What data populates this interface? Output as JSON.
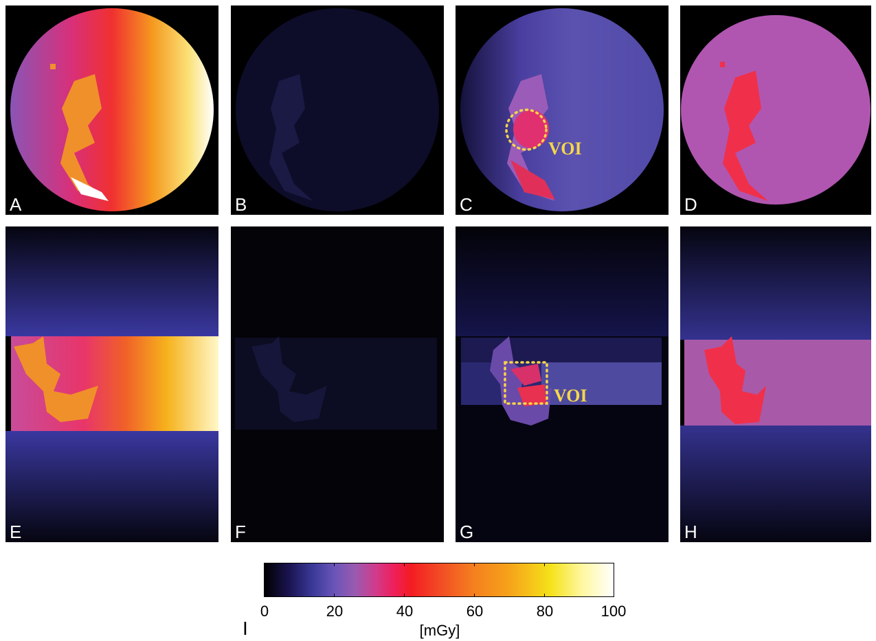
{
  "panels": {
    "a": {
      "label": "A"
    },
    "b": {
      "label": "B"
    },
    "c": {
      "label": "C",
      "annotation": "VOI"
    },
    "d": {
      "label": "D"
    },
    "e": {
      "label": "E"
    },
    "f": {
      "label": "F"
    },
    "g": {
      "label": "G",
      "annotation": "VOI"
    },
    "h": {
      "label": "H"
    }
  },
  "colorbar": {
    "label": "I",
    "ticks": [
      "0",
      "20",
      "40",
      "60",
      "80",
      "100"
    ],
    "unit": "[mGy]",
    "range": [
      0,
      100
    ]
  },
  "colors": {
    "voi_marker": "#f6d64a",
    "background": "#000000"
  }
}
